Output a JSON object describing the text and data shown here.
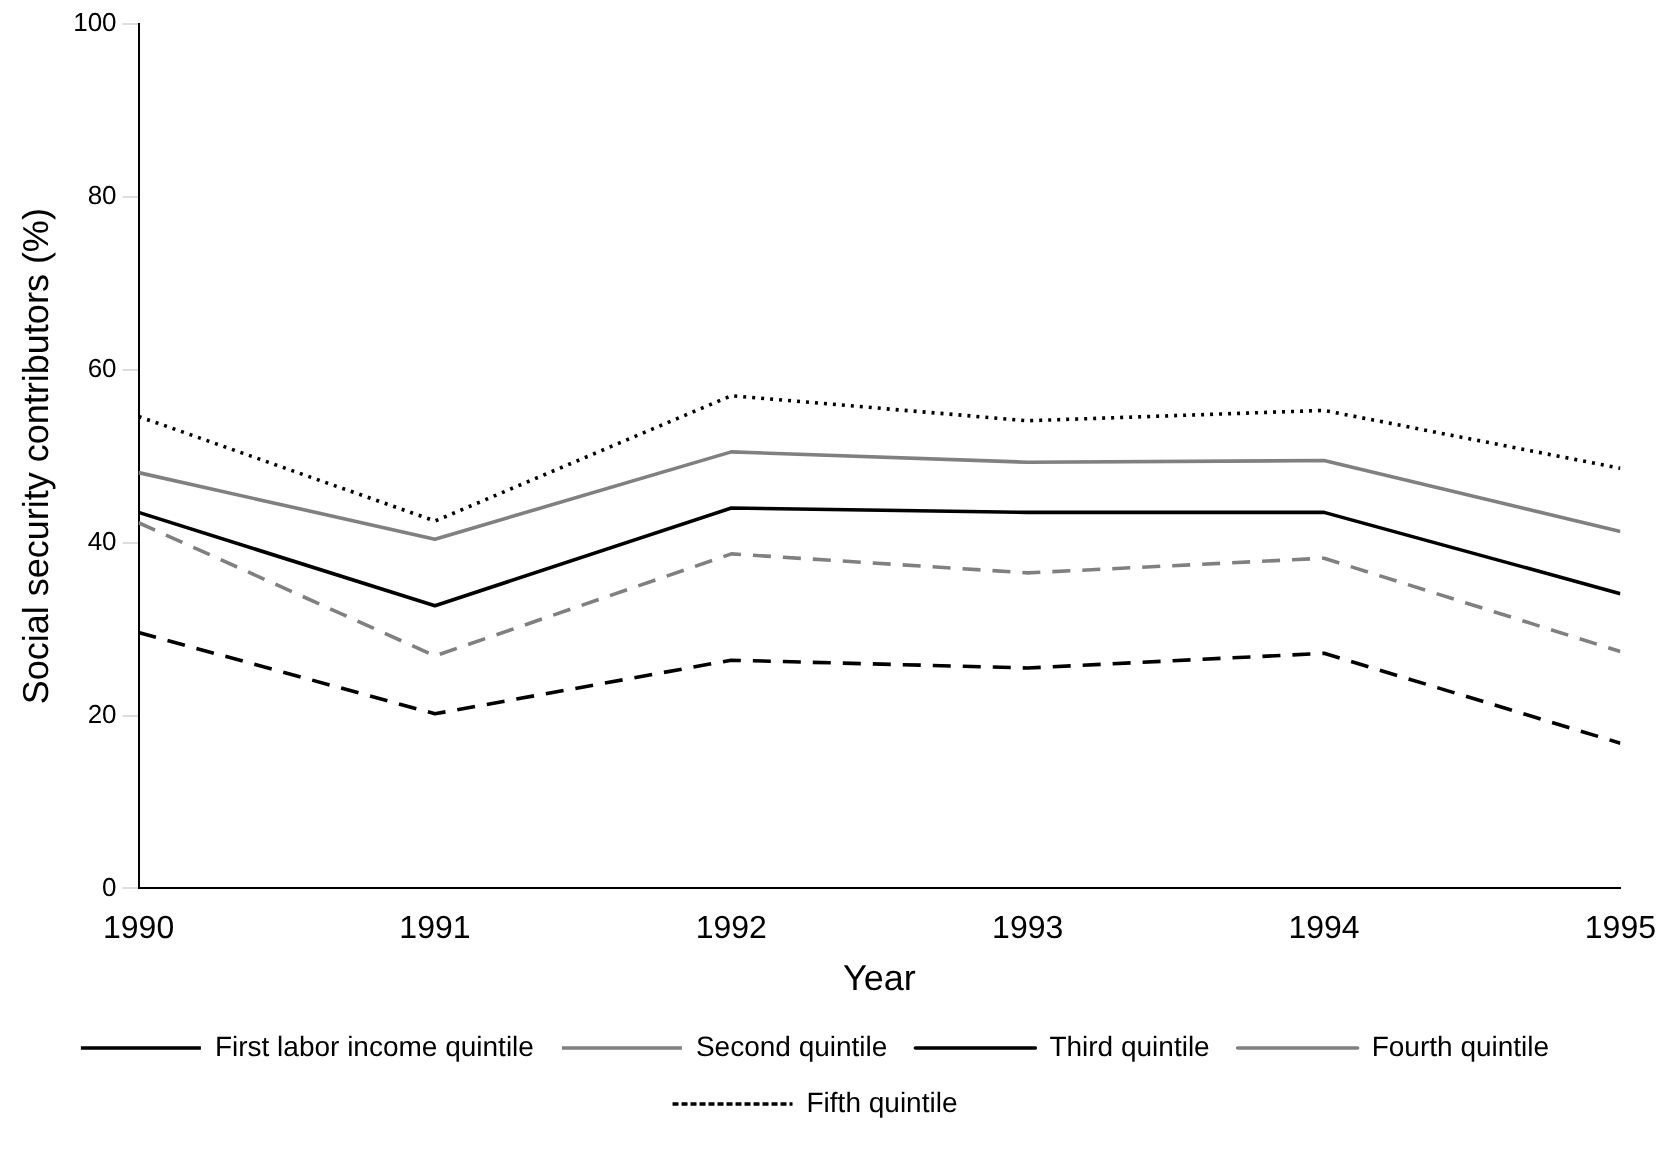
{
  "chart_data": {
    "type": "line",
    "xlabel": "Year",
    "ylabel": "Social security contributors (%)",
    "x": [
      1990,
      1991,
      1992,
      1993,
      1994,
      1995
    ],
    "xlim": [
      1990,
      1995
    ],
    "xticks": [
      1990,
      1991,
      1992,
      1993,
      1994,
      1995
    ],
    "ylim": [
      0,
      100
    ],
    "yticks": [
      0,
      20,
      40,
      60,
      80,
      100
    ],
    "grid": false,
    "legend": "bottom",
    "marker": "none",
    "series": [
      {
        "name": "First labor income quintile",
        "color": "#000000",
        "line_style": "dashed",
        "values": [
          29.6,
          20.2,
          26.4,
          25.5,
          27.2,
          16.8
        ]
      },
      {
        "name": "Second quintile",
        "color": "#808080",
        "line_style": "dashed",
        "values": [
          42.3,
          26.9,
          38.7,
          36.5,
          38.2,
          27.4
        ]
      },
      {
        "name": "Third quintile",
        "color": "#000000",
        "line_style": "solid",
        "values": [
          43.5,
          32.7,
          44.0,
          43.5,
          43.5,
          34.1
        ]
      },
      {
        "name": "Fourth quintile",
        "color": "#808080",
        "line_style": "solid",
        "values": [
          48.1,
          40.4,
          50.5,
          49.3,
          49.5,
          41.3
        ]
      },
      {
        "name": "Fifth quintile",
        "color": "#000000",
        "line_style": "dotted",
        "values": [
          54.6,
          42.5,
          57.0,
          54.1,
          55.3,
          48.6
        ]
      }
    ]
  }
}
